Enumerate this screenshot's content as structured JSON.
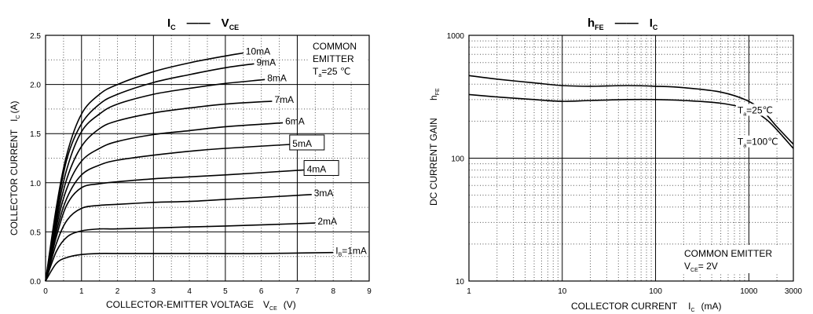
{
  "chart_data": [
    {
      "type": "line",
      "title_main": "I",
      "title_main_sub": "C",
      "title_dash": "——",
      "title_var": "V",
      "title_var_sub": "CE",
      "xlabel": "COLLECTOR-EMITTER VOLTAGE",
      "xlabel_var": "V",
      "xlabel_var_sub": "CE",
      "xlabel_unit": "(V)",
      "ylabel": "COLLECTOR CURRENT",
      "ylabel_var": "I",
      "ylabel_var_sub": "C",
      "ylabel_unit": "(A)",
      "xlim": [
        0,
        9
      ],
      "ylim": [
        0,
        2.5
      ],
      "x_ticks": [
        "0",
        "1",
        "2",
        "3",
        "4",
        "5",
        "6",
        "7",
        "8",
        "9"
      ],
      "y_ticks": [
        "0.0",
        "0.5",
        "1.0",
        "1.5",
        "2.0",
        "2.5"
      ],
      "grid": true,
      "annotation": {
        "line1": "COMMON",
        "line2": "EMITTER",
        "ta_text": "T",
        "ta_sub": "a",
        "ta_value": "=25 ℃"
      },
      "series": [
        {
          "name": "10mA",
          "label_prefix": "",
          "label_sub": "",
          "points": [
            [
              0,
              0
            ],
            [
              0.3,
              0.75
            ],
            [
              0.6,
              1.3
            ],
            [
              1,
              1.7
            ],
            [
              1.5,
              1.9
            ],
            [
              2,
              2.0
            ],
            [
              3,
              2.13
            ],
            [
              4,
              2.22
            ],
            [
              5,
              2.29
            ],
            [
              5.5,
              2.32
            ]
          ]
        },
        {
          "name": "9mA",
          "label_prefix": "",
          "label_sub": "",
          "points": [
            [
              0,
              0
            ],
            [
              0.3,
              0.7
            ],
            [
              0.6,
              1.25
            ],
            [
              1,
              1.6
            ],
            [
              1.5,
              1.8
            ],
            [
              2,
              1.9
            ],
            [
              3,
              2.02
            ],
            [
              4,
              2.1
            ],
            [
              5,
              2.17
            ],
            [
              5.8,
              2.21
            ]
          ]
        },
        {
          "name": "8mA",
          "label_prefix": "",
          "label_sub": "",
          "points": [
            [
              0,
              0
            ],
            [
              0.3,
              0.65
            ],
            [
              0.6,
              1.15
            ],
            [
              1,
              1.52
            ],
            [
              1.5,
              1.7
            ],
            [
              2,
              1.8
            ],
            [
              3,
              1.9
            ],
            [
              4,
              1.96
            ],
            [
              5,
              2.01
            ],
            [
              6.1,
              2.05
            ]
          ]
        },
        {
          "name": "7mA",
          "label_prefix": "",
          "label_sub": "",
          "points": [
            [
              0,
              0
            ],
            [
              0.3,
              0.6
            ],
            [
              0.6,
              1.05
            ],
            [
              1,
              1.37
            ],
            [
              1.5,
              1.55
            ],
            [
              2,
              1.63
            ],
            [
              3,
              1.71
            ],
            [
              4,
              1.76
            ],
            [
              5,
              1.8
            ],
            [
              6.3,
              1.83
            ]
          ]
        },
        {
          "name": "6mA",
          "label_prefix": "",
          "label_sub": "",
          "points": [
            [
              0,
              0
            ],
            [
              0.3,
              0.55
            ],
            [
              0.6,
              0.95
            ],
            [
              1,
              1.22
            ],
            [
              1.5,
              1.35
            ],
            [
              2,
              1.42
            ],
            [
              3,
              1.49
            ],
            [
              4,
              1.53
            ],
            [
              5,
              1.57
            ],
            [
              6.6,
              1.61
            ]
          ]
        },
        {
          "name": "5mA",
          "label_prefix": "",
          "label_sub": "",
          "points": [
            [
              0,
              0
            ],
            [
              0.3,
              0.5
            ],
            [
              0.6,
              0.85
            ],
            [
              1,
              1.08
            ],
            [
              1.5,
              1.18
            ],
            [
              2,
              1.23
            ],
            [
              3,
              1.28
            ],
            [
              4,
              1.32
            ],
            [
              5,
              1.35
            ],
            [
              6.8,
              1.39
            ]
          ]
        },
        {
          "name": "4mA",
          "label_prefix": "",
          "label_sub": "",
          "points": [
            [
              0,
              0
            ],
            [
              0.3,
              0.45
            ],
            [
              0.6,
              0.78
            ],
            [
              1,
              0.95
            ],
            [
              1.5,
              0.99
            ],
            [
              2,
              1.01
            ],
            [
              3,
              1.04
            ],
            [
              4,
              1.06
            ],
            [
              5,
              1.08
            ],
            [
              7.2,
              1.13
            ]
          ]
        },
        {
          "name": "3mA",
          "label_prefix": "",
          "label_sub": "",
          "points": [
            [
              0,
              0
            ],
            [
              0.3,
              0.38
            ],
            [
              0.6,
              0.62
            ],
            [
              1,
              0.74
            ],
            [
              1.5,
              0.77
            ],
            [
              2,
              0.78
            ],
            [
              3,
              0.8
            ],
            [
              4,
              0.81
            ],
            [
              5,
              0.83
            ],
            [
              7.4,
              0.88
            ]
          ]
        },
        {
          "name": "2mA",
          "label_prefix": "",
          "label_sub": "",
          "points": [
            [
              0,
              0
            ],
            [
              0.3,
              0.3
            ],
            [
              0.6,
              0.45
            ],
            [
              1,
              0.51
            ],
            [
              1.5,
              0.53
            ],
            [
              2,
              0.53
            ],
            [
              3,
              0.54
            ],
            [
              4,
              0.55
            ],
            [
              5,
              0.56
            ],
            [
              7.5,
              0.59
            ]
          ]
        },
        {
          "name": "=1mA",
          "label_prefix": "I",
          "label_sub": "B",
          "points": [
            [
              0,
              0
            ],
            [
              0.3,
              0.18
            ],
            [
              0.6,
              0.24
            ],
            [
              1,
              0.27
            ],
            [
              1.5,
              0.28
            ],
            [
              2,
              0.28
            ],
            [
              4,
              0.28
            ],
            [
              6,
              0.28
            ],
            [
              8,
              0.29
            ]
          ]
        }
      ]
    },
    {
      "type": "line",
      "title_main": "h",
      "title_main_sub": "FE",
      "title_dash": "——",
      "title_var": "I",
      "title_var_sub": "C",
      "xlabel": "COLLECTOR CURRENT",
      "xlabel_var": "I",
      "xlabel_var_sub": "C",
      "xlabel_unit": "(mA)",
      "ylabel": "DC CURRENT GAIN",
      "ylabel_var": "h",
      "ylabel_var_sub": "FE",
      "x_scale": "log",
      "y_scale": "log",
      "xlim": [
        1,
        3000
      ],
      "ylim": [
        10,
        1000
      ],
      "x_ticks": [
        "1",
        "10",
        "100",
        "1000",
        "3000"
      ],
      "y_ticks": [
        "10",
        "100",
        "1000"
      ],
      "grid": true,
      "annotation": {
        "line1": "COMMON EMITTER",
        "vce_text": "V",
        "vce_sub": "CE",
        "vce_value": "= 2V"
      },
      "series": [
        {
          "name": "=100℃",
          "label_prefix": "T",
          "label_sub": "a",
          "points": [
            [
              1,
              470
            ],
            [
              2,
              440
            ],
            [
              5,
              410
            ],
            [
              10,
              390
            ],
            [
              20,
              385
            ],
            [
              50,
              390
            ],
            [
              100,
              385
            ],
            [
              200,
              375
            ],
            [
              500,
              345
            ],
            [
              1000,
              290
            ],
            [
              1500,
              230
            ],
            [
              2000,
              180
            ],
            [
              3000,
              130
            ]
          ]
        },
        {
          "name": "=25℃",
          "label_prefix": "T",
          "label_sub": "a",
          "points": [
            [
              1,
              330
            ],
            [
              2,
              315
            ],
            [
              5,
              300
            ],
            [
              10,
              290
            ],
            [
              20,
              295
            ],
            [
              50,
              300
            ],
            [
              100,
              300
            ],
            [
              200,
              295
            ],
            [
              500,
              280
            ],
            [
              1000,
              250
            ],
            [
              1500,
              210
            ],
            [
              2000,
              170
            ],
            [
              3000,
              120
            ]
          ]
        }
      ]
    }
  ]
}
